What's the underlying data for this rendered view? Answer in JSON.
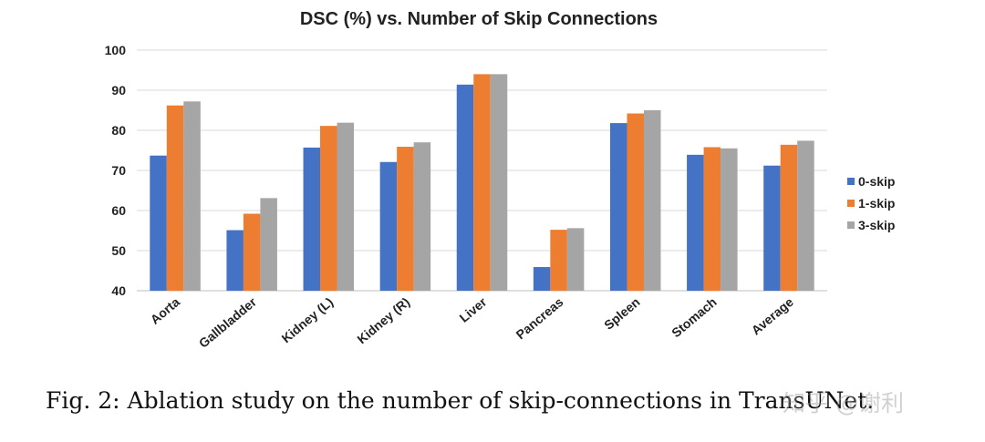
{
  "chart_data": {
    "type": "bar",
    "title": "DSC (%) vs. Number of Skip Connections",
    "xlabel": "",
    "ylabel": "",
    "ylim": [
      40,
      100
    ],
    "yticks": [
      40,
      50,
      60,
      70,
      80,
      90,
      100
    ],
    "grid": true,
    "legend_position": "right",
    "categories": [
      "Aorta",
      "Gallbladder",
      "Kidney (L)",
      "Kidney (R)",
      "Liver",
      "Pancreas",
      "Spleen",
      "Stomach",
      "Average"
    ],
    "series": [
      {
        "name": "0-skip",
        "color": "#4472C4",
        "values": [
          73.7,
          55.1,
          75.7,
          72.1,
          91.4,
          45.9,
          81.8,
          73.9,
          71.2
        ]
      },
      {
        "name": "1-skip",
        "color": "#ED7D31",
        "values": [
          86.2,
          59.2,
          81.1,
          75.9,
          94.0,
          55.2,
          84.2,
          75.8,
          76.4
        ]
      },
      {
        "name": "3-skip",
        "color": "#A5A5A5",
        "values": [
          87.2,
          63.1,
          81.9,
          77.0,
          94.0,
          55.6,
          85.0,
          75.5,
          77.4
        ]
      }
    ]
  },
  "caption": "Fig. 2: Ablation study on the number of skip-connections in TransUNet.",
  "watermark": "知乎 @谢利"
}
